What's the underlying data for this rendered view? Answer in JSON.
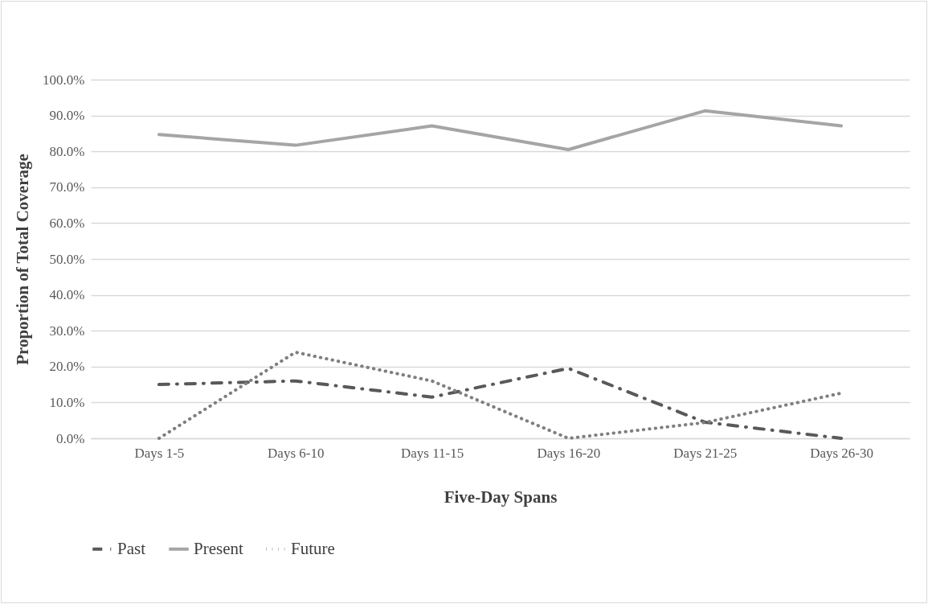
{
  "chart_data": {
    "type": "line",
    "xlabel": "Five-Day Spans",
    "ylabel": "Proportion of Total Coverage",
    "categories": [
      "Days 1-5",
      "Days 6-10",
      "Days 11-15",
      "Days 16-20",
      "Days 21-25",
      "Days 26-30"
    ],
    "series": [
      {
        "name": "Past",
        "color": "#595959",
        "line_style": "dashed",
        "values": [
          15.0,
          16.0,
          11.5,
          19.5,
          4.5,
          0.0
        ]
      },
      {
        "name": "Present",
        "color": "#a5a5a5",
        "line_style": "solid",
        "values": [
          84.7,
          81.7,
          87.1,
          80.5,
          91.3,
          87.1
        ]
      },
      {
        "name": "Future",
        "color": "#7f7f7f",
        "line_style": "dotted",
        "values": [
          0.0,
          24.0,
          16.0,
          0.0,
          4.4,
          12.6
        ]
      }
    ],
    "ylim": [
      0,
      100
    ],
    "yticks": [
      {
        "value": 0,
        "label": "0.0%"
      },
      {
        "value": 10,
        "label": "10.0%"
      },
      {
        "value": 20,
        "label": "20.0%"
      },
      {
        "value": 30,
        "label": "30.0%"
      },
      {
        "value": 40,
        "label": "40.0%"
      },
      {
        "value": 50,
        "label": "50.0%"
      },
      {
        "value": 60,
        "label": "60.0%"
      },
      {
        "value": 70,
        "label": "70.0%"
      },
      {
        "value": 80,
        "label": "80.0%"
      },
      {
        "value": 90,
        "label": "90.0%"
      },
      {
        "value": 100,
        "label": "100.0%"
      }
    ],
    "grid": "y",
    "legend": "bottom",
    "marker": "none"
  }
}
